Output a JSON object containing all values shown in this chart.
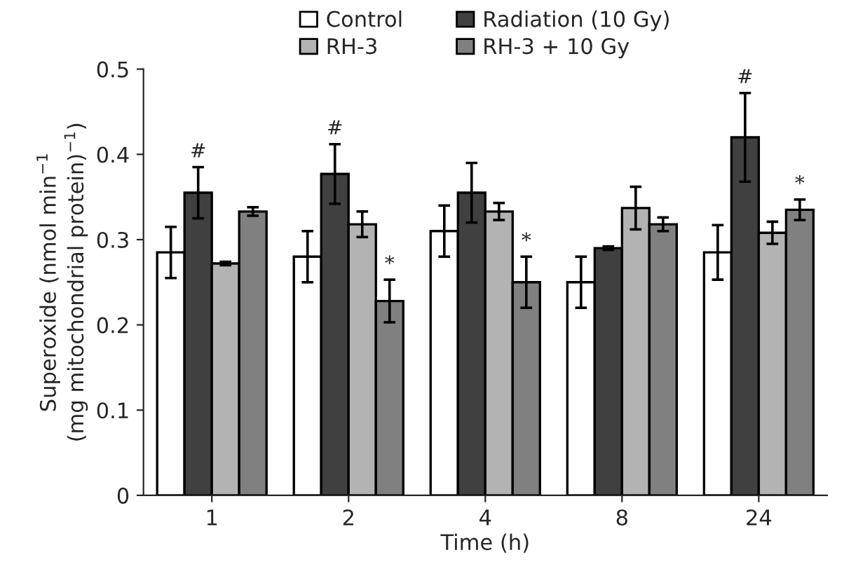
{
  "chart_data": {
    "type": "bar",
    "xlabel": "Time (h)",
    "ylabel": "Superoxide (nmol min$^{−1}$\n(mg mitochondrial protein)$^{−1}$)",
    "categories": [
      "1",
      "2",
      "4",
      "8",
      "24"
    ],
    "series": [
      {
        "name": "Control",
        "color": "#ffffff",
        "values": [
          0.285,
          0.28,
          0.31,
          0.25,
          0.285
        ],
        "errors": [
          0.03,
          0.03,
          0.03,
          0.03,
          0.032
        ]
      },
      {
        "name": "Radiation (10 Gy)",
        "color": "#404040",
        "values": [
          0.355,
          0.377,
          0.355,
          0.29,
          0.42
        ],
        "errors": [
          0.03,
          0.035,
          0.035,
          0.002,
          0.052
        ]
      },
      {
        "name": "RH-3",
        "color": "#b3b3b3",
        "values": [
          0.272,
          0.318,
          0.333,
          0.337,
          0.308
        ],
        "errors": [
          0.002,
          0.015,
          0.01,
          0.025,
          0.013
        ]
      },
      {
        "name": "RH-3 + 10 Gy",
        "color": "#808080",
        "values": [
          0.333,
          0.228,
          0.25,
          0.318,
          0.335
        ],
        "errors": [
          0.005,
          0.025,
          0.03,
          0.008,
          0.012
        ]
      }
    ],
    "annotations": [
      {
        "text": "#",
        "x": "1",
        "y": 0.355
      },
      {
        "text": "#",
        "x": "2",
        "y": 0.377
      },
      {
        "text": "#",
        "x": "24",
        "y": 0.42
      },
      {
        "text": "*",
        "x": "2",
        "y": 0.228
      },
      {
        "text": "*",
        "x": "4",
        "y": 0.25
      },
      {
        "text": "*",
        "x": "24",
        "y": 0.335
      }
    ],
    "ylim": [
      0,
      0.5
    ],
    "yticks": [
      0,
      0.1,
      0.2,
      0.3,
      0.4,
      0.5
    ],
    "grid": false,
    "legend": "top"
  }
}
